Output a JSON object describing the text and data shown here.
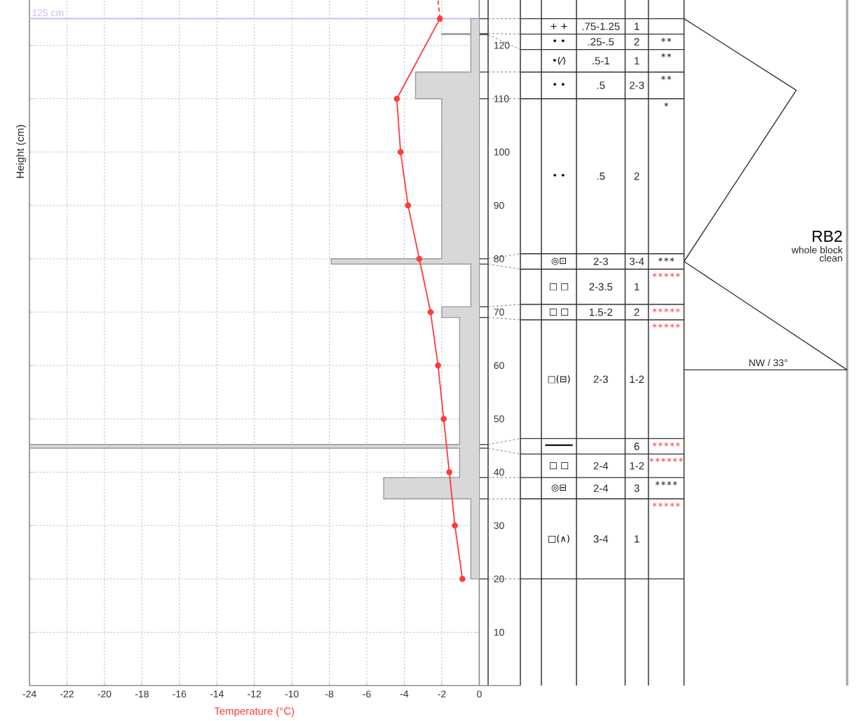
{
  "chart_data": [
    {
      "type": "line",
      "xlabel": "Temperature (°C)",
      "ylabel": "Height (cm)",
      "xlim": [
        -24,
        0
      ],
      "ylim": [
        0,
        128.5
      ],
      "xticks": [
        -24,
        -22,
        -20,
        -18,
        -16,
        -14,
        -12,
        -10,
        -8,
        -6,
        -4,
        -2,
        0
      ],
      "yticks": [
        10,
        20,
        30,
        40,
        50,
        60,
        70,
        80,
        90,
        100,
        110,
        120
      ],
      "grid": true,
      "ref_lines": [
        {
          "axis": "y",
          "value": 125,
          "label": "125 cm",
          "color": "#c0c0f8"
        }
      ],
      "series": [
        {
          "type": "area",
          "color": "#999999",
          "x": [
            0,
            -0.45,
            -0.45,
            -2,
            -2,
            -0.45,
            -0.45,
            -3.4,
            -3.4,
            -2,
            -2,
            -7.9,
            -7.9,
            -0.45,
            -0.45,
            -2,
            -2,
            -1.05,
            -1.05,
            -24,
            -24,
            -1.05,
            -1.05,
            -5.1,
            -5.1,
            -0.45,
            -0.45,
            0
          ],
          "values": [
            125,
            125,
            122.2,
            122.2,
            122,
            122,
            115,
            115,
            110,
            110,
            80,
            80,
            79,
            79,
            71,
            71,
            69,
            69,
            45.2,
            45.2,
            44.5,
            44.5,
            39,
            39,
            35,
            35,
            20,
            20
          ]
        },
        {
          "type": "line",
          "color": "#ff3b3b",
          "marker": "circle",
          "x": [
            -2.1,
            -4.4,
            -4.2,
            -3.8,
            -3.2,
            -2.6,
            -2.2,
            -1.9,
            -1.6,
            -1.3,
            -0.9
          ],
          "values": [
            125,
            110,
            100,
            90,
            80,
            70,
            60,
            50,
            40,
            30,
            20
          ]
        },
        {
          "type": "line",
          "color": "#ff3b3b",
          "line_style": "dashed",
          "x": [
            -2.1,
            -2.2
          ],
          "values": [
            125,
            128.5
          ]
        }
      ]
    },
    {
      "type": "other",
      "cell_labels": [
        [
          "+ +",
          ".75-1.25",
          "1",
          null
        ],
        [
          "• •",
          ".25-.5",
          "2",
          "∗∗"
        ],
        [
          "•(⁄)",
          ".5-1",
          "1",
          "∗∗"
        ],
        [
          "• •",
          ".5",
          "2-3",
          "∗∗"
        ],
        [
          "• •",
          ".5",
          "2",
          "∗"
        ],
        [
          "◎⊡",
          "2-3",
          "3-4",
          "∗∗∗"
        ],
        [
          "□ □",
          "2-3.5",
          "1",
          "∗∗∗∗∗"
        ],
        [
          "□ □",
          "1.5-2",
          "2",
          "∗∗∗∗∗"
        ],
        [
          "□(⊟)",
          "2-3",
          "1-2",
          "∗∗∗∗∗"
        ],
        [
          "━━━━━",
          null,
          "6",
          "∗∗∗∗∗"
        ],
        [
          "□ □",
          "2-4",
          "1-2",
          "∗∗∗∗∗∗"
        ],
        [
          "◎⊟",
          "2-4",
          "3",
          "∗∗∗∗"
        ],
        [
          "□(∧)",
          "3-4",
          "1",
          "∗∗∗∗∗"
        ]
      ],
      "colors": [
        null,
        "#333333",
        "#333333",
        "#333333",
        "#333333",
        "#333333",
        "#ff4d4d",
        "#ff4d4d",
        "#ff4d4d",
        "#ff4d4d",
        "#ff4d4d",
        "#333333",
        "#ff4d4d"
      ],
      "annotations": [
        "RB2",
        "whole block",
        "clean",
        "NW / 33°"
      ]
    }
  ]
}
